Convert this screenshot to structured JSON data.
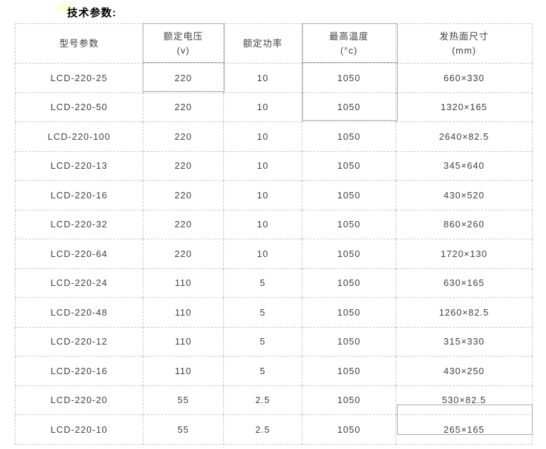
{
  "page": {
    "title": "技术参数:"
  },
  "table": {
    "columns": [
      {
        "label": "型号参数",
        "sub": ""
      },
      {
        "label": "额定电压",
        "sub": "(v)"
      },
      {
        "label": "额定功率",
        "sub": ""
      },
      {
        "label": "最高温度",
        "sub": "(°c)"
      },
      {
        "label": "发热面尺寸",
        "sub": "(mm)"
      }
    ],
    "rows": [
      [
        "LCD-220-25",
        "220",
        "10",
        "1050",
        "660×330"
      ],
      [
        "LCD-220-50",
        "220",
        "10",
        "1050",
        "1320×165"
      ],
      [
        "LCD-220-100",
        "220",
        "10",
        "1050",
        "2640×82.5"
      ],
      [
        "LCD-220-13",
        "220",
        "10",
        "1050",
        "345×640"
      ],
      [
        "LCD-220-16",
        "220",
        "10",
        "1050",
        "430×520"
      ],
      [
        "LCD-220-32",
        "220",
        "10",
        "1050",
        "860×260"
      ],
      [
        "LCD-220-64",
        "220",
        "10",
        "1050",
        "1720×130"
      ],
      [
        "LCD-220-24",
        "110",
        "5",
        "1050",
        "630×165"
      ],
      [
        "LCD-220-48",
        "110",
        "5",
        "1050",
        "1260×82.5"
      ],
      [
        "LCD-220-12",
        "110",
        "5",
        "1050",
        "315×330"
      ],
      [
        "LCD-220-16",
        "110",
        "5",
        "1050",
        "430×250"
      ],
      [
        "LCD-220-20",
        "55",
        "2.5",
        "1050",
        "530×82.5"
      ],
      [
        "LCD-220-10",
        "55",
        "2.5",
        "1050",
        "265×165"
      ]
    ]
  },
  "colors": {
    "cell_text": "#404040",
    "title_text": "#000000",
    "dashed_border": "#c9c9c9",
    "solid_outline": "#a9a9a9",
    "background": "#ffffff"
  }
}
